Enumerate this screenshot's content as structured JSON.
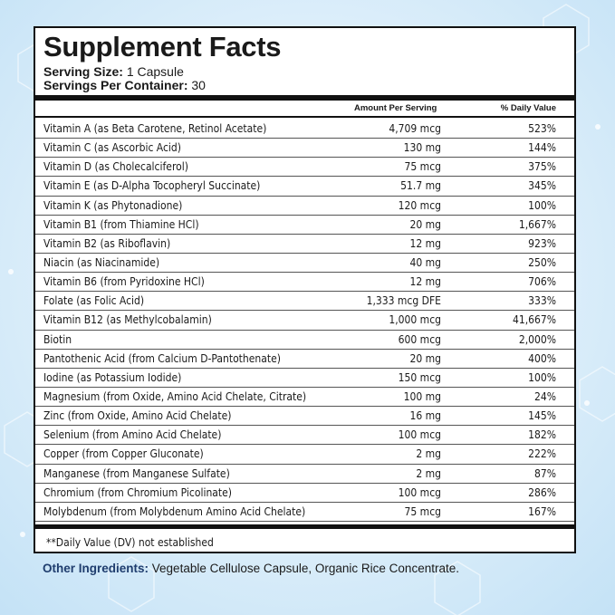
{
  "title": "Supplement Facts",
  "serving_size_label": "Serving Size:",
  "serving_size_value": "1 Capsule",
  "servings_label": "Servings Per Container:",
  "servings_value": "30",
  "column_amount": "Amount Per Serving",
  "column_dv": "% Daily Value",
  "nutrients": [
    {
      "name": "Vitamin A (as Beta Carotene,  Retinol Acetate)",
      "amount": "4,709 mcg",
      "dv": "523%"
    },
    {
      "name": "Vitamin C (as Ascorbic Acid)",
      "amount": "130 mg",
      "dv": "144%"
    },
    {
      "name": "Vitamin D (as Cholecalciferol)",
      "amount": "75 mcg",
      "dv": "375%"
    },
    {
      "name": "Vitamin E (as D-Alpha Tocopheryl Succinate)",
      "amount": "51.7 mg",
      "dv": "345%"
    },
    {
      "name": "Vitamin K (as Phytonadione)",
      "amount": "120 mcg",
      "dv": "100%"
    },
    {
      "name": "Vitamin B1 (from Thiamine HCl)",
      "amount": "20 mg",
      "dv": "1,667%"
    },
    {
      "name": "Vitamin B2 (as Riboflavin)",
      "amount": "12 mg",
      "dv": "923%"
    },
    {
      "name": "Niacin (as Niacinamide)",
      "amount": "40 mg",
      "dv": "250%"
    },
    {
      "name": "Vitamin B6 (from Pyridoxine HCl)",
      "amount": "12 mg",
      "dv": "706%"
    },
    {
      "name": "Folate (as Folic Acid)",
      "amount": "1,333 mcg DFE",
      "dv": "333%"
    },
    {
      "name": "Vitamin B12 (as Methylcobalamin)",
      "amount": "1,000 mcg",
      "dv": "41,667%"
    },
    {
      "name": "Biotin",
      "amount": "600 mcg",
      "dv": "2,000%"
    },
    {
      "name": "Pantothenic Acid (from Calcium D-Pantothenate)",
      "amount": "20 mg",
      "dv": "400%"
    },
    {
      "name": "Iodine (as Potassium Iodide)",
      "amount": "150 mcg",
      "dv": "100%"
    },
    {
      "name": "Magnesium (from Oxide, Amino Acid Chelate, Citrate)",
      "amount": "100 mg",
      "dv": "24%"
    },
    {
      "name": "Zinc (from Oxide, Amino Acid Chelate)",
      "amount": "16 mg",
      "dv": "145%"
    },
    {
      "name": "Selenium (from Amino Acid Chelate)",
      "amount": "100 mcg",
      "dv": "182%"
    },
    {
      "name": "Copper (from Copper Gluconate)",
      "amount": "2 mg",
      "dv": "222%"
    },
    {
      "name": "Manganese (from Manganese Sulfate)",
      "amount": "2 mg",
      "dv": "87%"
    },
    {
      "name": "Chromium (from Chromium Picolinate)",
      "amount": "100 mcg",
      "dv": "286%"
    },
    {
      "name": "Molybdenum (from Molybdenum Amino Acid Chelate)",
      "amount": "75 mcg",
      "dv": "167%"
    }
  ],
  "footnote": "**Daily Value (DV) not established",
  "other_label": "Other Ingredients:",
  "other_value": "Vegetable Cellulose Capsule, Organic Rice Concentrate.",
  "colors": {
    "brand_blue": "#1f3d6e",
    "background": "#dceefa"
  }
}
